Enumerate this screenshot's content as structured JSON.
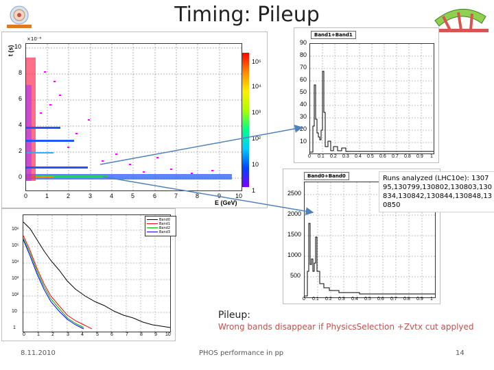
{
  "slide": {
    "title": "Timing: Pileup",
    "footer_left": "8.11.2010",
    "footer_center": "PHOS performance in pp",
    "footer_right": "14"
  },
  "panels": {
    "heatmap": {
      "ylabel": "t (s)",
      "exponent": "×10⁻⁶",
      "xlabel": "E (GeV)",
      "x_ticks": [
        "0",
        "1",
        "2",
        "3",
        "4",
        "5",
        "6",
        "7",
        "8",
        "9",
        "10"
      ],
      "y_ticks": [
        "0",
        "2",
        "4",
        "6",
        "8",
        "10"
      ],
      "colorbar_ticks": [
        "1",
        "10",
        "10²",
        "10³",
        "10⁴",
        "10⁵"
      ]
    },
    "band1": {
      "title": "Band1+Band1",
      "y_ticks": [
        "10",
        "20",
        "30",
        "40",
        "50",
        "60",
        "70",
        "80",
        "90"
      ],
      "x_ticks": [
        "0",
        "0.1",
        "0.2",
        "0.3",
        "0.4",
        "0.5",
        "0.6",
        "0.7",
        "0.8",
        "0.9",
        "1"
      ]
    },
    "band0": {
      "title": "Band0+Band0",
      "y_ticks": [
        "500",
        "1000",
        "1500",
        "2000",
        "2500"
      ],
      "x_ticks": [
        "0",
        "0.1",
        "0.2",
        "0.3",
        "0.4",
        "0.5",
        "0.6",
        "0.7",
        "0.8",
        "0.9",
        "1"
      ]
    },
    "bands": {
      "y_ticks": [
        "1",
        "10",
        "10²",
        "10³",
        "10⁴",
        "10⁵",
        "10⁶"
      ],
      "x_ticks": [
        "0",
        "1",
        "2",
        "3",
        "4",
        "5",
        "6",
        "7",
        "8",
        "9",
        "10"
      ],
      "legend": [
        "Band0",
        "Band1",
        "Band2",
        "Band3"
      ]
    }
  },
  "notes": {
    "runs": "Runs analyzed (LHC10e): 130795,130799,130802,130803,130834,130842,130844,130848,130850",
    "pileup_heading": "Pileup:",
    "pileup_text": "Wrong bands disappear if PhysicsSelection +Zvtx cut applyed"
  },
  "colors": {
    "legend": [
      "#000000",
      "#ff0000",
      "#00aa00",
      "#0000ff"
    ],
    "pileup_text": "#c0504d",
    "arrow": "#4f81bd"
  },
  "icons": [
    "alice-logo-icon",
    "phos-detector-icon"
  ]
}
